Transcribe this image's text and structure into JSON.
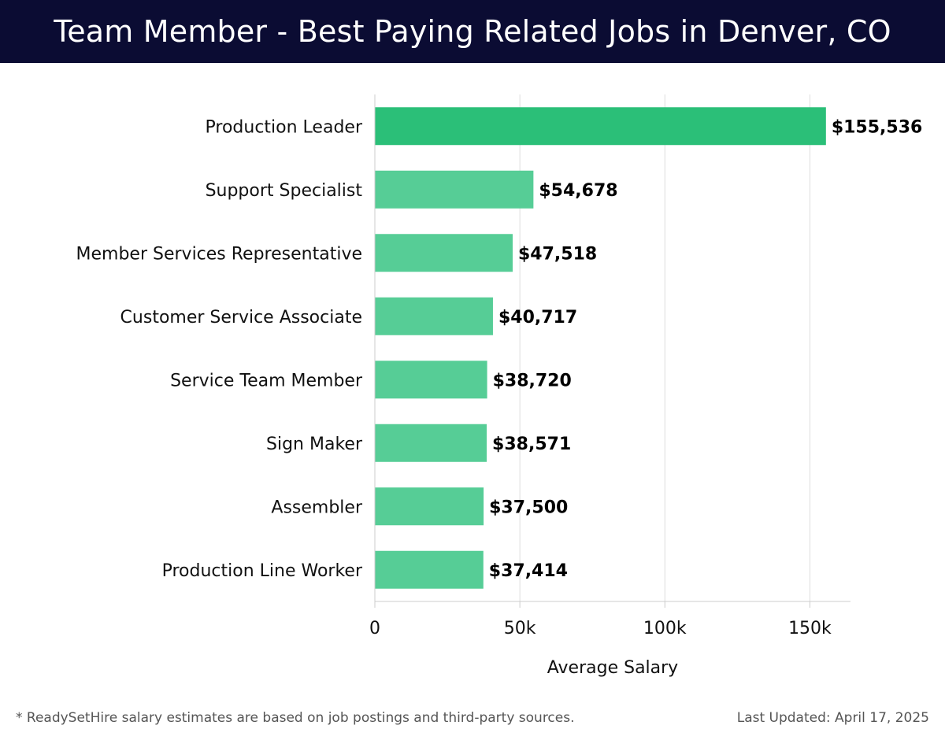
{
  "header": {
    "title": "Team Member - Best Paying Related Jobs in Denver, CO"
  },
  "colors": {
    "header_bg": "#0b0c33",
    "bar_highlight": "#2bbf78",
    "bar_default": "#56cd96",
    "grid": "#dddddd"
  },
  "chart_data": {
    "type": "bar",
    "orientation": "horizontal",
    "title": "Team Member - Best Paying Related Jobs in Denver, CO",
    "categories": [
      "Production Leader",
      "Support Specialist",
      "Member Services Representative",
      "Customer Service Associate",
      "Service Team Member",
      "Sign Maker",
      "Assembler",
      "Production Line Worker"
    ],
    "values": [
      155536,
      54678,
      47518,
      40717,
      38720,
      38571,
      37500,
      37414
    ],
    "value_labels": [
      "$155,536",
      "$54,678",
      "$47,518",
      "$40,717",
      "$38,720",
      "$38,571",
      "$37,500",
      "$37,414"
    ],
    "xlabel": "Average Salary",
    "ylabel": "",
    "xlim": [
      0,
      164000
    ],
    "xticks": [
      0,
      50000,
      100000,
      150000
    ],
    "xtick_labels": [
      "0",
      "50k",
      "100k",
      "150k"
    ],
    "highlight_index": 0,
    "grid": true
  },
  "footer": {
    "note": "* ReadySetHire salary estimates are based on job postings and third-party sources.",
    "updated": "Last Updated: April 17, 2025"
  }
}
